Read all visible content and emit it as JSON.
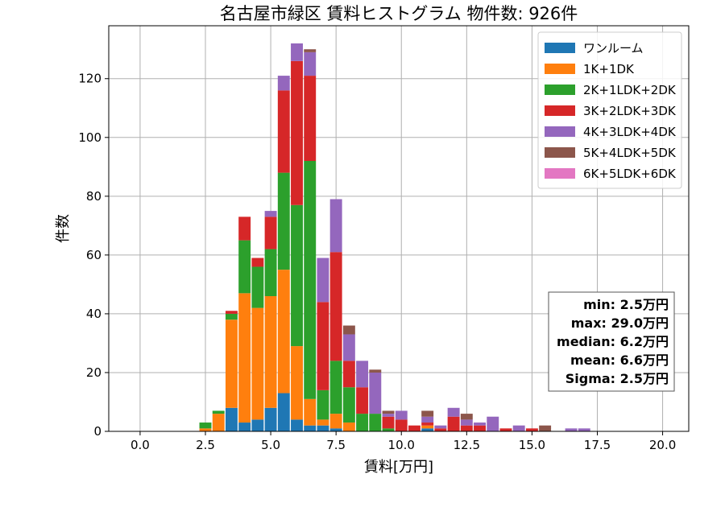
{
  "chart_data": {
    "type": "bar",
    "stacked": true,
    "title": "名古屋市緑区 賃料ヒストグラム 物件数: 926件",
    "xlabel": "賃料[万円]",
    "ylabel": "件数",
    "xlim": [
      -1.2,
      21.0
    ],
    "ylim": [
      0,
      138
    ],
    "xticks": [
      0.0,
      2.5,
      5.0,
      7.5,
      10.0,
      12.5,
      15.0,
      17.5,
      20.0
    ],
    "xtick_labels": [
      "0.0",
      "2.5",
      "5.0",
      "7.5",
      "10.0",
      "12.5",
      "15.0",
      "17.5",
      "20.0"
    ],
    "yticks": [
      0,
      20,
      40,
      60,
      80,
      100,
      120
    ],
    "grid": true,
    "legend_position": "top-right",
    "bin_width": 0.5,
    "x": [
      2.5,
      3.0,
      3.5,
      4.0,
      4.5,
      5.0,
      5.5,
      6.0,
      6.5,
      7.0,
      7.5,
      8.0,
      8.5,
      9.0,
      9.5,
      10.0,
      10.5,
      11.0,
      11.5,
      12.0,
      12.5,
      13.0,
      13.5,
      14.0,
      14.5,
      15.0,
      15.5,
      16.0,
      16.5,
      17.0
    ],
    "series": [
      {
        "name": "ワンルーム",
        "color": "#1f77b4",
        "values": [
          0,
          0,
          8,
          3,
          4,
          8,
          13,
          4,
          2,
          2,
          1,
          0,
          0,
          0,
          0,
          0,
          0,
          1,
          0,
          0,
          0,
          0,
          0,
          0,
          0,
          0,
          0,
          0,
          0,
          0
        ]
      },
      {
        "name": "1K+1DK",
        "color": "#ff7f0e",
        "values": [
          1,
          6,
          30,
          44,
          38,
          38,
          42,
          25,
          9,
          2,
          5,
          3,
          0,
          0,
          0,
          0,
          0,
          1,
          0,
          0,
          0,
          0,
          0,
          0,
          0,
          0,
          0,
          0,
          0,
          0
        ]
      },
      {
        "name": "2K+1LDK+2DK",
        "color": "#2ca02c",
        "values": [
          2,
          1,
          2,
          18,
          14,
          16,
          33,
          48,
          81,
          10,
          18,
          12,
          6,
          6,
          1,
          0,
          0,
          0,
          0,
          0,
          0,
          0,
          0,
          0,
          0,
          0,
          0,
          0,
          0,
          0
        ]
      },
      {
        "name": "3K+2LDK+3DK",
        "color": "#d62728",
        "values": [
          0,
          0,
          1,
          8,
          3,
          11,
          28,
          49,
          29,
          30,
          37,
          9,
          9,
          0,
          4,
          4,
          2,
          1,
          1,
          5,
          2,
          2,
          0,
          1,
          0,
          1,
          0,
          0,
          0,
          0
        ]
      },
      {
        "name": "4K+3LDK+4DK",
        "color": "#9467bd",
        "values": [
          0,
          0,
          0,
          0,
          0,
          2,
          5,
          6,
          8,
          15,
          18,
          9,
          9,
          14,
          1,
          3,
          0,
          2,
          1,
          3,
          2,
          1,
          5,
          0,
          2,
          0,
          0,
          0,
          1,
          1
        ]
      },
      {
        "name": "5K+4LDK+5DK",
        "color": "#8c564b",
        "values": [
          0,
          0,
          0,
          0,
          0,
          0,
          0,
          0,
          1,
          0,
          0,
          3,
          0,
          1,
          1,
          0,
          0,
          2,
          0,
          0,
          2,
          0,
          0,
          0,
          0,
          0,
          2,
          0,
          0,
          0
        ]
      },
      {
        "name": "6K+5LDK+6DK",
        "color": "#e377c2",
        "values": [
          0,
          0,
          0,
          0,
          0,
          0,
          0,
          0,
          0,
          0,
          0,
          0,
          0,
          0,
          0,
          0,
          0,
          0,
          0,
          0,
          0,
          0,
          0,
          0,
          0,
          0,
          0,
          0,
          0,
          0
        ]
      }
    ],
    "stats_box": [
      "min: 2.5万円",
      "max: 29.0万円",
      "median: 6.2万円",
      "mean: 6.6万円",
      "Sigma: 2.5万円"
    ]
  }
}
